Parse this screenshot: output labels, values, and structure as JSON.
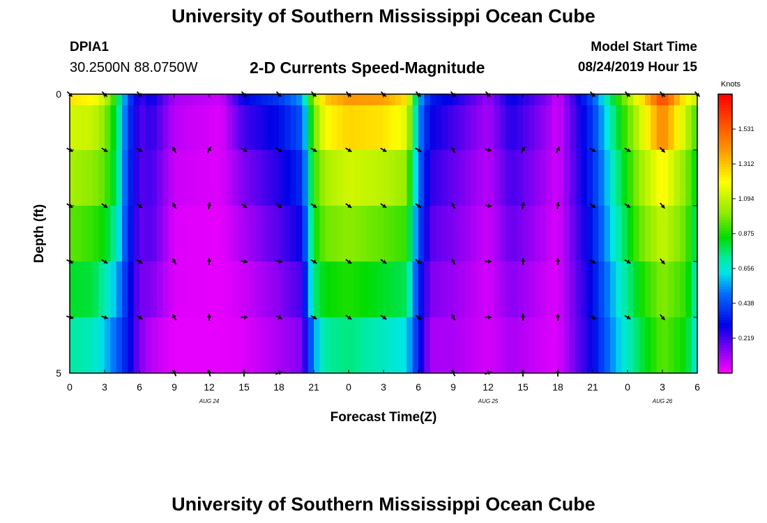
{
  "header": {
    "title": "University of Southern Mississippi Ocean Cube",
    "station_id": "DPIA1",
    "station_coords": "30.2500N 88.0750W",
    "start_label": "Model Start Time",
    "start_value": "08/24/2019 Hour 15"
  },
  "footer": {
    "title": "University of Southern Mississippi Ocean Cube"
  },
  "chart_data": {
    "type": "heatmap",
    "title": "2-D Currents Speed-Magnitude",
    "xlabel": "Forecast Time(Z)",
    "ylabel": "Depth (ft)",
    "y_ticks": [
      "0",
      "5"
    ],
    "ylim": [
      0,
      5
    ],
    "x_hours": [
      0,
      3,
      6,
      9,
      12,
      15,
      18,
      21,
      24,
      27,
      30,
      33,
      36,
      39,
      42,
      45,
      48,
      51,
      54
    ],
    "x_tick_labels": [
      "0",
      "3",
      "6",
      "9",
      "12",
      "15",
      "18",
      "21",
      "0",
      "3",
      "6",
      "9",
      "12",
      "15",
      "18",
      "21",
      "0",
      "3",
      "6"
    ],
    "date_labels": [
      {
        "hour": 12,
        "text": "AUG 24"
      },
      {
        "hour": 36,
        "text": "AUG 25"
      },
      {
        "hour": 51,
        "text": "AUG 26"
      }
    ],
    "colorbar": {
      "unit": "Knots",
      "min": 0,
      "max": 1.75,
      "ticks": [
        "1.531",
        "1.312",
        "1.094",
        "0.875",
        "0.656",
        "0.438",
        "0.219"
      ],
      "tick_values": [
        1.531,
        1.312,
        1.094,
        0.875,
        0.656,
        0.438,
        0.219
      ]
    },
    "speed_keys": [
      {
        "h": 0,
        "v": [
          1.25,
          1.12,
          1.05,
          0.95,
          0.82,
          0.72
        ]
      },
      {
        "h": 2,
        "v": [
          1.2,
          1.1,
          1.0,
          0.9,
          0.8,
          0.68
        ]
      },
      {
        "h": 3,
        "v": [
          1.1,
          1.0,
          0.95,
          0.85,
          0.7,
          0.6
        ]
      },
      {
        "h": 4,
        "v": [
          0.85,
          0.8,
          0.78,
          0.7,
          0.58,
          0.48
        ]
      },
      {
        "h": 5,
        "v": [
          0.45,
          0.42,
          0.4,
          0.38,
          0.35,
          0.33
        ]
      },
      {
        "h": 6,
        "v": [
          0.22,
          0.2,
          0.2,
          0.18,
          0.16,
          0.15
        ]
      },
      {
        "h": 7,
        "v": [
          0.3,
          0.25,
          0.22,
          0.2,
          0.15,
          0.08
        ]
      },
      {
        "h": 9,
        "v": [
          0.1,
          0.08,
          0.06,
          0.04,
          0.04,
          0.03
        ]
      },
      {
        "h": 13,
        "v": [
          0.06,
          0.04,
          0.04,
          0.03,
          0.03,
          0.03
        ]
      },
      {
        "h": 15,
        "v": [
          0.3,
          0.22,
          0.15,
          0.1,
          0.06,
          0.04
        ]
      },
      {
        "h": 18,
        "v": [
          0.4,
          0.32,
          0.26,
          0.2,
          0.14,
          0.1
        ]
      },
      {
        "h": 20,
        "v": [
          0.55,
          0.45,
          0.38,
          0.3,
          0.22,
          0.15
        ]
      },
      {
        "h": 21,
        "v": [
          1.05,
          0.95,
          0.9,
          0.85,
          0.75,
          0.55
        ]
      },
      {
        "h": 22,
        "v": [
          1.3,
          1.2,
          1.05,
          0.97,
          0.85,
          0.72
        ]
      },
      {
        "h": 24,
        "v": [
          1.4,
          1.28,
          1.12,
          1.0,
          0.88,
          0.75
        ]
      },
      {
        "h": 27,
        "v": [
          1.38,
          1.25,
          1.08,
          0.95,
          0.82,
          0.68
        ]
      },
      {
        "h": 29,
        "v": [
          1.25,
          1.15,
          1.02,
          0.9,
          0.78,
          0.62
        ]
      },
      {
        "h": 30,
        "v": [
          0.6,
          0.55,
          0.5,
          0.45,
          0.38,
          0.35
        ]
      },
      {
        "h": 31,
        "v": [
          0.35,
          0.3,
          0.25,
          0.2,
          0.15,
          0.1
        ]
      },
      {
        "h": 33,
        "v": [
          0.28,
          0.22,
          0.18,
          0.15,
          0.12,
          0.1
        ]
      },
      {
        "h": 36,
        "v": [
          0.12,
          0.1,
          0.08,
          0.06,
          0.05,
          0.05
        ]
      },
      {
        "h": 38,
        "v": [
          0.3,
          0.26,
          0.22,
          0.18,
          0.14,
          0.1
        ]
      },
      {
        "h": 41,
        "v": [
          0.15,
          0.12,
          0.1,
          0.08,
          0.06,
          0.05
        ]
      },
      {
        "h": 42,
        "v": [
          0.05,
          0.05,
          0.05,
          0.04,
          0.04,
          0.04
        ]
      },
      {
        "h": 45,
        "v": [
          0.45,
          0.4,
          0.38,
          0.35,
          0.32,
          0.3
        ]
      },
      {
        "h": 47,
        "v": [
          0.85,
          0.78,
          0.72,
          0.68,
          0.62,
          0.58
        ]
      },
      {
        "h": 49,
        "v": [
          1.2,
          1.1,
          1.02,
          0.95,
          0.85,
          0.78
        ]
      },
      {
        "h": 51,
        "v": [
          1.6,
          1.45,
          1.22,
          1.1,
          1.0,
          0.95
        ]
      },
      {
        "h": 53,
        "v": [
          1.2,
          1.1,
          1.0,
          0.95,
          0.9,
          0.85
        ]
      },
      {
        "h": 54,
        "v": [
          1.1,
          0.9,
          0.82,
          0.75,
          0.68,
          0.62
        ]
      }
    ],
    "vector_rows": [
      {
        "depth": 0.0,
        "dirs": [
          135,
          135,
          135,
          null,
          null,
          135,
          135,
          135,
          135,
          135,
          135,
          135,
          135,
          null,
          null,
          135,
          135,
          135,
          135
        ]
      },
      {
        "depth": 1.0,
        "dirs": [
          120,
          120,
          120,
          -30,
          30,
          120,
          120,
          120,
          120,
          120,
          120,
          -30,
          100,
          30,
          30,
          120,
          120,
          135,
          null
        ]
      },
      {
        "depth": 2.0,
        "dirs": [
          125,
          125,
          125,
          -30,
          10,
          125,
          125,
          125,
          125,
          125,
          125,
          -30,
          100,
          10,
          10,
          125,
          125,
          140,
          null
        ]
      },
      {
        "depth": 3.0,
        "dirs": [
          120,
          120,
          120,
          -30,
          0,
          100,
          100,
          120,
          125,
          125,
          125,
          -30,
          90,
          0,
          0,
          120,
          120,
          140,
          null
        ]
      },
      {
        "depth": 4.0,
        "dirs": [
          110,
          110,
          120,
          -30,
          0,
          90,
          115,
          120,
          125,
          125,
          125,
          -30,
          90,
          0,
          0,
          120,
          120,
          140,
          null
        ]
      },
      {
        "depth": 5.0,
        "dirs": [
          null,
          null,
          null,
          -30,
          -20,
          0,
          70,
          null,
          null,
          null,
          null,
          -30,
          70,
          0,
          0,
          null,
          null,
          null,
          null
        ]
      }
    ]
  }
}
